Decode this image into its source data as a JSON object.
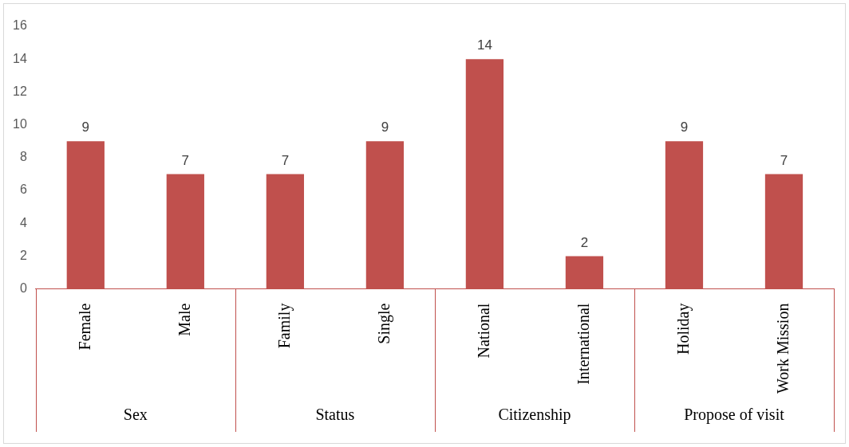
{
  "chart_data": {
    "type": "bar",
    "categories": [
      "Female",
      "Male",
      "Family",
      "Single",
      "National",
      "International",
      "Holiday",
      "Work Mission"
    ],
    "values": [
      9,
      7,
      7,
      9,
      14,
      2,
      9,
      7
    ],
    "color": "#c0504d",
    "ylim": [
      0,
      16
    ],
    "yticks": [
      0,
      2,
      4,
      6,
      8,
      10,
      12,
      14,
      16
    ],
    "data_labels": true,
    "grid": false,
    "legend": false,
    "annotations": [
      "Sex",
      "Status",
      "Citizenship",
      "Propose of visit"
    ]
  }
}
